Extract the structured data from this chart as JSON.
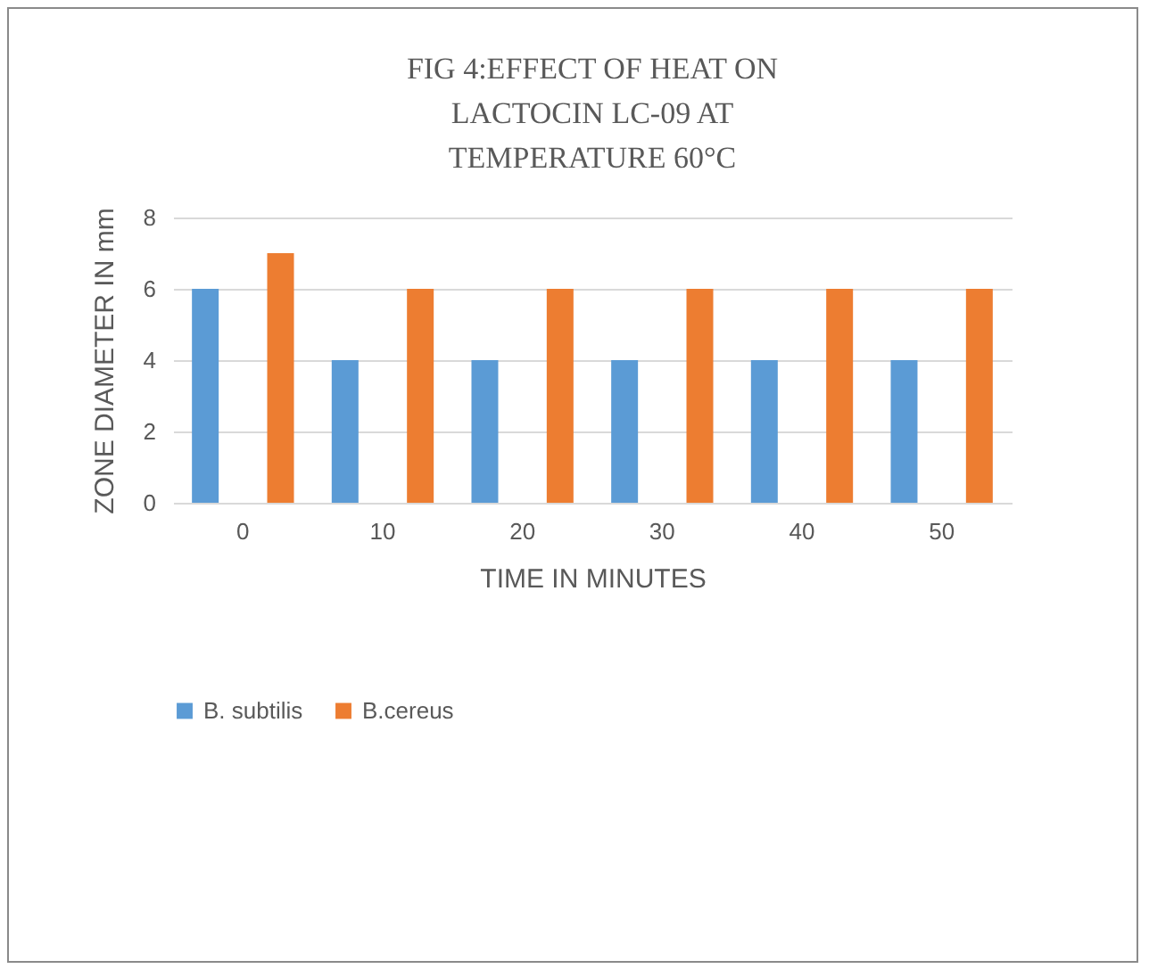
{
  "chart_data": {
    "type": "bar",
    "title": "FIG 4:EFFECT OF HEAT ON\nLACTOCIN LC-09 AT\nTEMPERATURE 60°C",
    "xlabel": "TIME IN MINUTES",
    "ylabel": "ZONE DIAMETER IN mm",
    "categories": [
      "0",
      "10",
      "20",
      "30",
      "40",
      "50"
    ],
    "series": [
      {
        "name": "B. subtilis",
        "color": "#5b9bd5",
        "values": [
          6,
          4,
          4,
          4,
          4,
          4
        ]
      },
      {
        "name": "B.cereus",
        "color": "#ed7d31",
        "values": [
          7,
          6,
          6,
          6,
          6,
          6
        ]
      }
    ],
    "ylim": [
      0,
      8
    ],
    "yticks": [
      0,
      2,
      4,
      6,
      8
    ],
    "grid": "y",
    "legend": "bottom"
  }
}
